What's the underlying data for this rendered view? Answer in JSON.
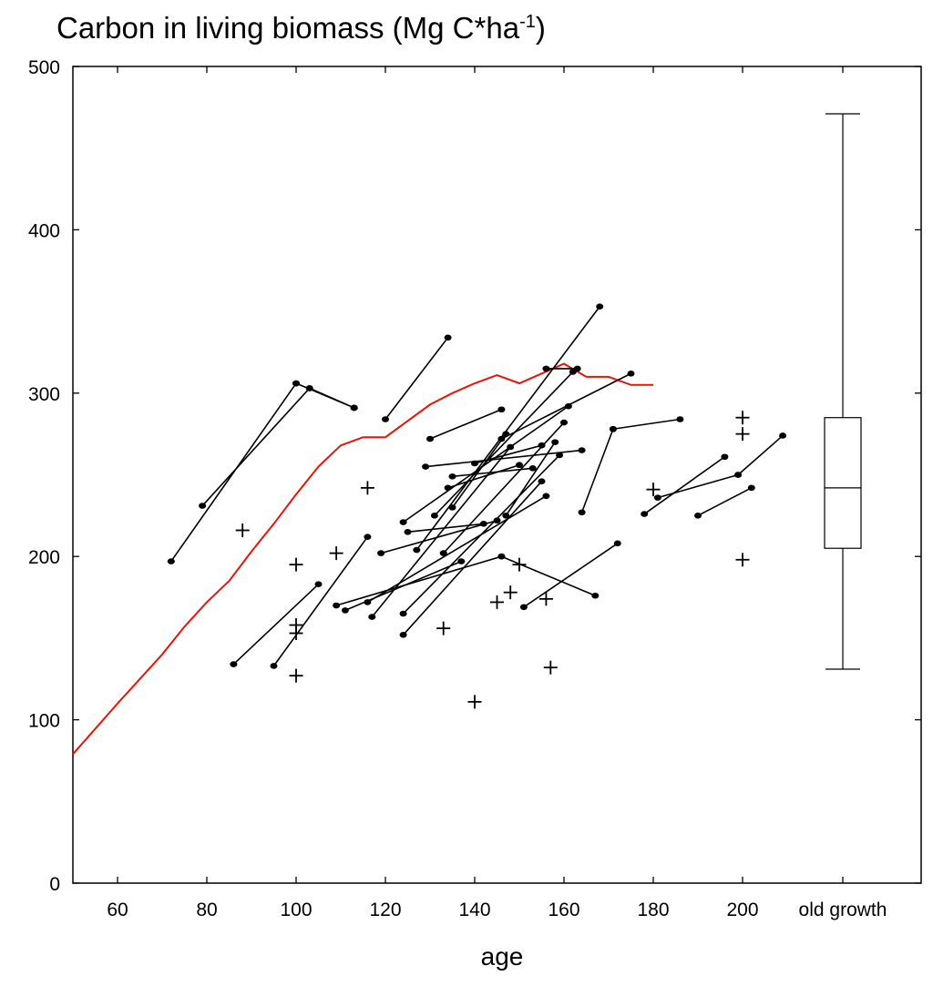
{
  "chart_data": {
    "type": "scatter",
    "title": {
      "main": "Carbon in living biomass (Mg C*ha",
      "sup": "-1",
      "close": ")"
    },
    "xlabel": "age",
    "ylabel": "",
    "xlim": [
      50,
      240
    ],
    "ylim": [
      0,
      500
    ],
    "xticks": [
      60,
      80,
      100,
      120,
      140,
      160,
      180,
      200
    ],
    "yticks": [
      0,
      100,
      200,
      300,
      400,
      500
    ],
    "extra_category_label": "old growth",
    "grid": false,
    "colors": {
      "model_line": "#e8140c",
      "points": "#000000"
    },
    "model_curve": [
      [
        50,
        79
      ],
      [
        60,
        110
      ],
      [
        70,
        140
      ],
      [
        75,
        157
      ],
      [
        80,
        172
      ],
      [
        85,
        185
      ],
      [
        90,
        203
      ],
      [
        95,
        220
      ],
      [
        100,
        238
      ],
      [
        105,
        255
      ],
      [
        110,
        268
      ],
      [
        115,
        273
      ],
      [
        120,
        273
      ],
      [
        125,
        283
      ],
      [
        130,
        293
      ],
      [
        135,
        300
      ],
      [
        140,
        306
      ],
      [
        145,
        311
      ],
      [
        150,
        306
      ],
      [
        155,
        312
      ],
      [
        160,
        318
      ],
      [
        165,
        310
      ],
      [
        170,
        310
      ],
      [
        175,
        305
      ],
      [
        180,
        305
      ]
    ],
    "remeasured_pairs": [
      [
        [
          72,
          197
        ],
        [
          100,
          306
        ]
      ],
      [
        [
          79,
          231
        ],
        [
          103,
          303
        ]
      ],
      [
        [
          100,
          306
        ],
        [
          113,
          291
        ]
      ],
      [
        [
          103,
          303
        ],
        [
          113,
          291
        ]
      ],
      [
        [
          86,
          134
        ],
        [
          105,
          183
        ]
      ],
      [
        [
          95,
          133
        ],
        [
          116,
          212
        ]
      ],
      [
        [
          109,
          170
        ],
        [
          146,
          200
        ]
      ],
      [
        [
          111,
          167
        ],
        [
          137,
          197
        ]
      ],
      [
        [
          113,
          291
        ],
        [
          113,
          291
        ]
      ],
      [
        [
          120,
          284
        ],
        [
          134,
          334
        ]
      ],
      [
        [
          116,
          172
        ],
        [
          156,
          237
        ]
      ],
      [
        [
          117,
          163
        ],
        [
          148,
          267
        ]
      ],
      [
        [
          119,
          202
        ],
        [
          145,
          222
        ]
      ],
      [
        [
          124,
          221
        ],
        [
          161,
          292
        ]
      ],
      [
        [
          124,
          165
        ],
        [
          159,
          262
        ]
      ],
      [
        [
          124,
          152
        ],
        [
          155,
          246
        ]
      ],
      [
        [
          125,
          215
        ],
        [
          142,
          220
        ]
      ],
      [
        [
          127,
          204
        ],
        [
          168,
          353
        ]
      ],
      [
        [
          129,
          255
        ],
        [
          164,
          265
        ]
      ],
      [
        [
          130,
          272
        ],
        [
          146,
          290
        ]
      ],
      [
        [
          131,
          225
        ],
        [
          162,
          313
        ]
      ],
      [
        [
          133,
          202
        ],
        [
          160,
          282
        ]
      ],
      [
        [
          134,
          242
        ],
        [
          150,
          256
        ]
      ],
      [
        [
          135,
          230
        ],
        [
          147,
          275
        ]
      ],
      [
        [
          135,
          249
        ],
        [
          153,
          254
        ]
      ],
      [
        [
          140,
          257
        ],
        [
          155,
          268
        ]
      ],
      [
        [
          146,
          200
        ],
        [
          167,
          176
        ]
      ],
      [
        [
          147,
          225
        ],
        [
          158,
          270
        ]
      ],
      [
        [
          151,
          169
        ],
        [
          172,
          208
        ]
      ],
      [
        [
          146,
          272
        ],
        [
          175,
          312
        ]
      ],
      [
        [
          156,
          315
        ],
        [
          163,
          315
        ]
      ],
      [
        [
          164,
          227
        ],
        [
          171,
          278
        ]
      ],
      [
        [
          171,
          278
        ],
        [
          186,
          284
        ]
      ],
      [
        [
          178,
          226
        ],
        [
          196,
          261
        ]
      ],
      [
        [
          181,
          236
        ],
        [
          199,
          250
        ]
      ],
      [
        [
          190,
          225
        ],
        [
          202,
          242
        ]
      ],
      [
        [
          199,
          250
        ],
        [
          209,
          274
        ]
      ]
    ],
    "single_measurements": [
      [
        88,
        216
      ],
      [
        100,
        195
      ],
      [
        100,
        158
      ],
      [
        100,
        153
      ],
      [
        100,
        127
      ],
      [
        109,
        202
      ],
      [
        116,
        242
      ],
      [
        133,
        156
      ],
      [
        140,
        111
      ],
      [
        145,
        172
      ],
      [
        148,
        178
      ],
      [
        150,
        195
      ],
      [
        156,
        174
      ],
      [
        157,
        132
      ],
      [
        180,
        241
      ],
      [
        200,
        285
      ],
      [
        200,
        275
      ],
      [
        200,
        198
      ]
    ],
    "boxplot": {
      "category": "old growth",
      "min": 131,
      "q1": 205,
      "median": 242,
      "q3": 285,
      "max": 471
    }
  }
}
